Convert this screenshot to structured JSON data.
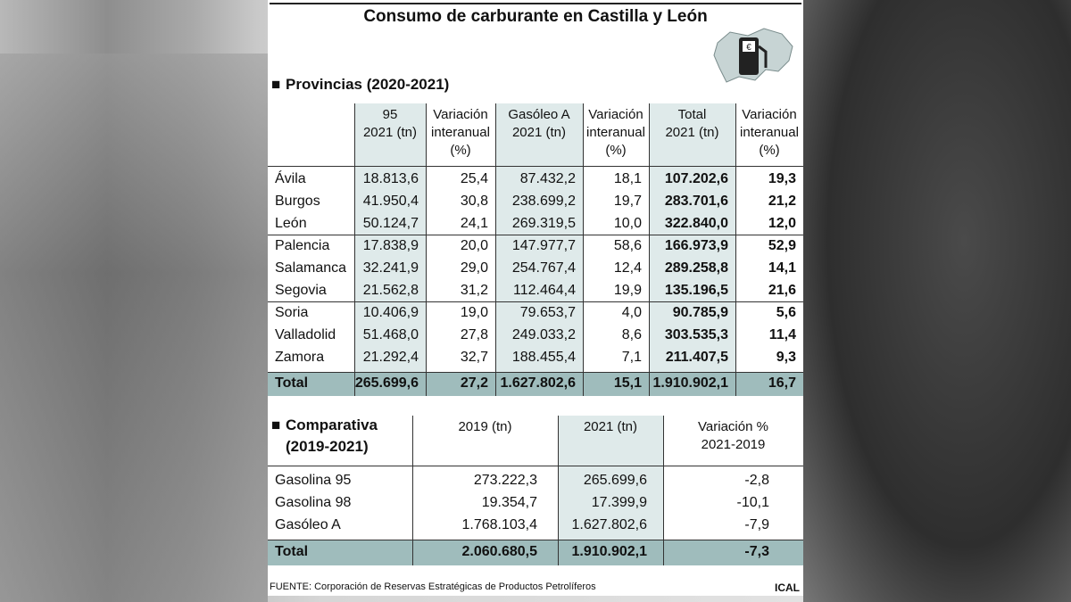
{
  "title": "Consumo de carburante en Castilla y León",
  "provincias": {
    "heading": "Provincias (2020-2021)",
    "headers": [
      [
        "95",
        "2021 (tn)"
      ],
      [
        "Variación",
        "interanual",
        "(%)"
      ],
      [
        "Gasóleo A",
        "2021 (tn)"
      ],
      [
        "Variación",
        "interanual",
        "(%)"
      ],
      [
        "Total",
        "2021 (tn)"
      ],
      [
        "Variación",
        "interanual",
        "(%)"
      ]
    ],
    "rows": [
      [
        "Ávila",
        "18.813,6",
        "25,4",
        "87.432,2",
        "18,1",
        "107.202,6",
        "19,3"
      ],
      [
        "Burgos",
        "41.950,4",
        "30,8",
        "238.699,2",
        "19,7",
        "283.701,6",
        "21,2"
      ],
      [
        "León",
        "50.124,7",
        "24,1",
        "269.319,5",
        "10,0",
        "322.840,0",
        "12,0"
      ],
      [
        "Palencia",
        "17.838,9",
        "20,0",
        "147.977,7",
        "58,6",
        "166.973,9",
        "52,9"
      ],
      [
        "Salamanca",
        "32.241,9",
        "29,0",
        "254.767,4",
        "12,4",
        "289.258,8",
        "14,1"
      ],
      [
        "Segovia",
        "21.562,8",
        "31,2",
        "112.464,4",
        "19,9",
        "135.196,5",
        "21,6"
      ],
      [
        "Soria",
        "10.406,9",
        "19,0",
        "79.653,7",
        "4,0",
        "90.785,9",
        "5,6"
      ],
      [
        "Valladolid",
        "51.468,0",
        "27,8",
        "249.033,2",
        "8,6",
        "303.535,3",
        "11,4"
      ],
      [
        "Zamora",
        "21.292,4",
        "32,7",
        "188.455,4",
        "7,1",
        "211.407,5",
        "9,3"
      ]
    ],
    "total": [
      "Total",
      "265.699,6",
      "27,2",
      "1.627.802,6",
      "15,1",
      "1.910.902,1",
      "16,7"
    ]
  },
  "comparativa": {
    "heading": [
      "Comparativa",
      "(2019-2021)"
    ],
    "headers": [
      [
        "2019 (tn)"
      ],
      [
        "2021 (tn)"
      ],
      [
        "Variación %",
        "2021-2019"
      ]
    ],
    "rows": [
      [
        "Gasolina 95",
        "273.222,3",
        "265.699,6",
        "-2,8"
      ],
      [
        "Gasolina 98",
        "19.354,7",
        "17.399,9",
        "-10,1"
      ],
      [
        "Gasóleo A",
        "1.768.103,4",
        "1.627.802,6",
        "-7,9"
      ]
    ],
    "total": [
      "Total",
      "2.060.680,5",
      "1.910.902,1",
      "-7,3"
    ]
  },
  "source": "FUENTE: Corporación de Reservas Estratégicas de Productos Petrolíferos",
  "credit": "ICAL"
}
